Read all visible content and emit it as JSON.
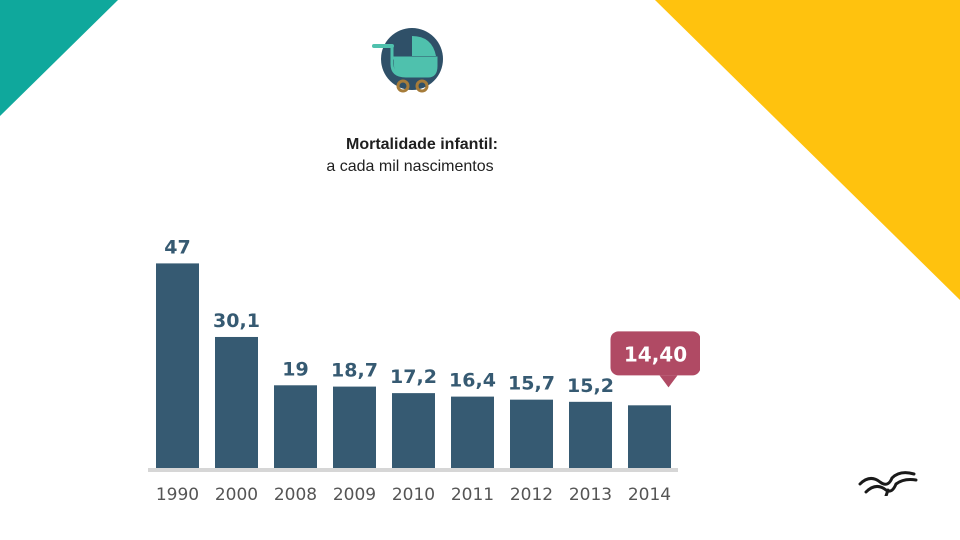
{
  "title": "Mortalidade infantil:",
  "subtitle": "a cada mil nascimentos",
  "chart_data": {
    "type": "bar",
    "categories": [
      "1990",
      "2000",
      "2008",
      "2009",
      "2010",
      "2011",
      "2012",
      "2013",
      "2014"
    ],
    "values": [
      47,
      30.1,
      19,
      18.7,
      17.2,
      16.4,
      15.7,
      15.2,
      14.4
    ],
    "value_labels": [
      "47",
      "30,1",
      "19",
      "18,7",
      "17,2",
      "16,4",
      "15,7",
      "15,2",
      "14,40"
    ],
    "highlight_index": 8,
    "ylim": [
      0,
      50
    ],
    "grid": false,
    "colors": {
      "bar": "#365a72",
      "highlight": "#b04a64"
    }
  },
  "colors": {
    "teal": "#0fa89c",
    "yellow": "#ffc20e"
  },
  "icons": {
    "header": "baby-stroller-icon",
    "logo": "bird-logo-icon"
  }
}
